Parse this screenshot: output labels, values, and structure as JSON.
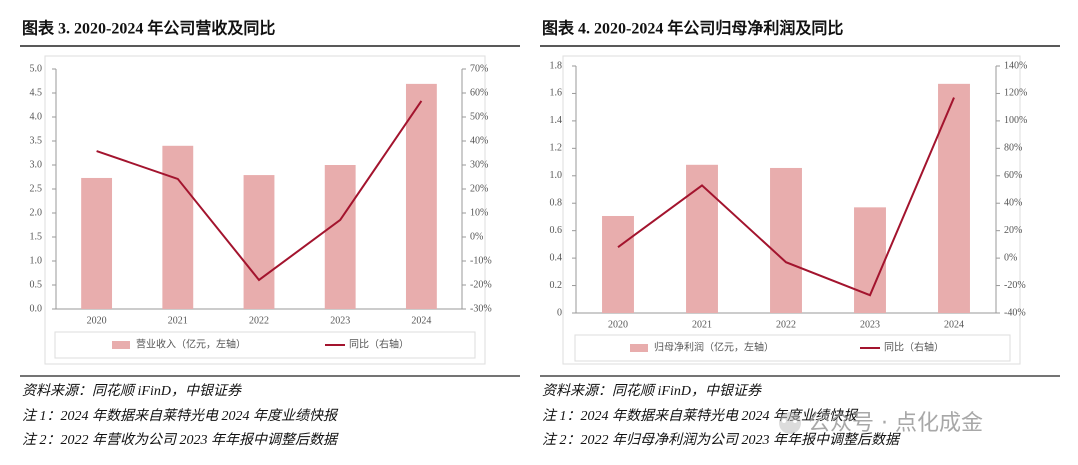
{
  "chart_data": [
    {
      "type": "bar",
      "title": "图表 3. 2020-2024 年公司营收及同比",
      "categories": [
        "2020",
        "2021",
        "2022",
        "2023",
        "2024"
      ],
      "series": [
        {
          "name": "营业收入（亿元，左轴）",
          "type": "bar",
          "color": "#e8adad",
          "values": [
            2.73,
            3.4,
            2.79,
            3.0,
            4.69
          ]
        },
        {
          "name": "同比（右轴）",
          "type": "line",
          "axis": "y2",
          "color": "#a3142e",
          "values": [
            35.8,
            24.2,
            -17.9,
            7.1,
            56.7
          ]
        }
      ],
      "ylim": [
        0,
        5
      ],
      "yticks": [
        {
          "value": 0,
          "label": "0.0"
        },
        0.5,
        {
          "value": 1,
          "label": "1.0"
        },
        1.5,
        {
          "value": 2,
          "label": "2.0"
        },
        2.5,
        {
          "value": 3,
          "label": "3.0"
        },
        3.5,
        {
          "value": 4,
          "label": "4.0"
        },
        4.5,
        {
          "value": 5,
          "label": "5.0"
        }
      ],
      "y2lim": [
        -30,
        70
      ],
      "y2ticks": [
        {
          "value": -30,
          "label": "-30%"
        },
        {
          "value": -20,
          "label": "-20%"
        },
        {
          "value": -10,
          "label": "-10%"
        },
        {
          "value": 0,
          "label": "0%"
        },
        {
          "value": 10,
          "label": "10%"
        },
        {
          "value": 20,
          "label": "20%"
        },
        {
          "value": 30,
          "label": "30%"
        },
        {
          "value": 40,
          "label": "40%"
        },
        {
          "value": 50,
          "label": "50%"
        },
        {
          "value": 60,
          "label": "60%"
        },
        {
          "value": 70,
          "label": "70%"
        }
      ],
      "grid": false,
      "legend": "bottom",
      "source": "资料来源：同花顺 iFinD，中银证券",
      "notes": [
        "注 1：2024 年数据来自莱特光电 2024 年度业绩快报",
        "注 2：2022 年营收为公司 2023 年年报中调整后数据"
      ]
    },
    {
      "type": "bar",
      "title": "图表 4. 2020-2024 年公司归母净利润及同比",
      "categories": [
        "2020",
        "2021",
        "2022",
        "2023",
        "2024"
      ],
      "series": [
        {
          "name": "归母净利润（亿元，左轴）",
          "type": "bar",
          "color": "#e8adad",
          "values": [
            0.707,
            1.08,
            1.057,
            0.77,
            1.67
          ]
        },
        {
          "name": "同比（右轴）",
          "type": "line",
          "axis": "y2",
          "color": "#a3142e",
          "values": [
            8,
            53,
            -3,
            -27,
            117
          ]
        }
      ],
      "ylim": [
        0,
        1.8
      ],
      "yticks": [
        0,
        0.2,
        0.4,
        0.6,
        0.8,
        {
          "value": 1,
          "label": "1.0"
        },
        1.2,
        1.4,
        1.6,
        1.8
      ],
      "y2lim": [
        -40,
        140
      ],
      "y2ticks": [
        {
          "value": -40,
          "label": "-40%"
        },
        {
          "value": -20,
          "label": "-20%"
        },
        {
          "value": 0,
          "label": "0%"
        },
        {
          "value": 20,
          "label": "20%"
        },
        {
          "value": 40,
          "label": "40%"
        },
        {
          "value": 60,
          "label": "60%"
        },
        {
          "value": 80,
          "label": "80%"
        },
        {
          "value": 100,
          "label": "100%"
        },
        {
          "value": 120,
          "label": "120%"
        },
        {
          "value": 140,
          "label": "140%"
        }
      ],
      "grid": false,
      "legend": "bottom",
      "source": "资料来源：同花顺 iFinD，中银证券",
      "notes": [
        "注 1：2024 年数据来自莱特光电 2024 年度业绩快报",
        "注 2：2022 年归母净利润为公司 2023 年年报中调整后数据"
      ]
    }
  ],
  "watermark": "公众号 · 点化成金"
}
